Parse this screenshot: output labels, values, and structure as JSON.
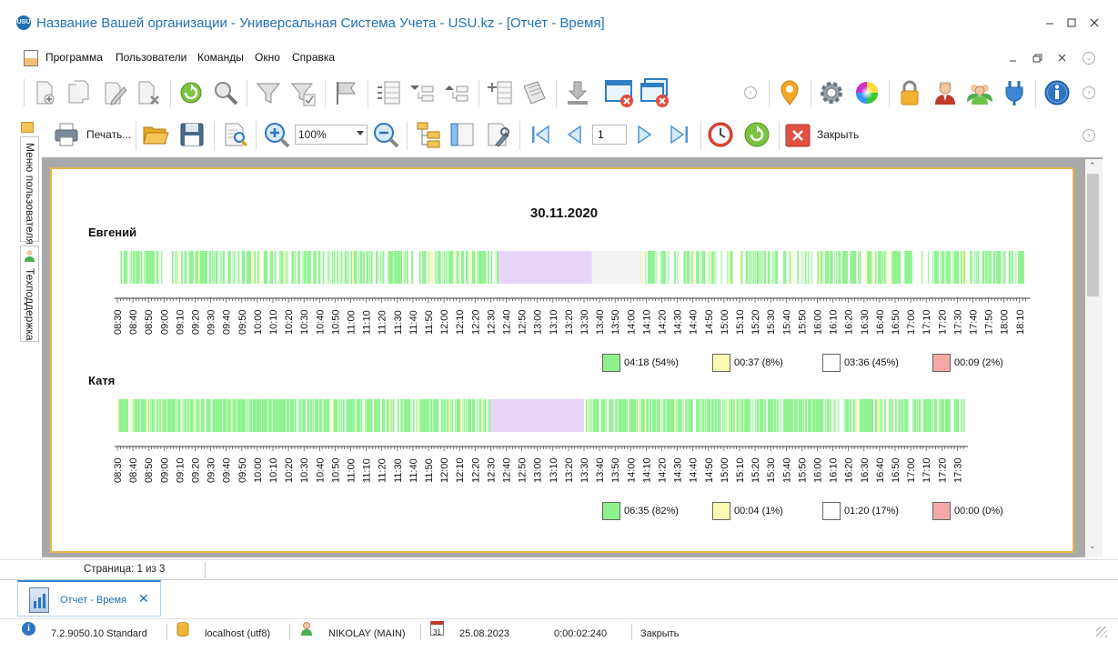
{
  "window": {
    "title": "Название Вашей организации - Универсальная Система Учета - USU.kz - [Отчет - Время]",
    "logo_text": "USU",
    "controls": [
      "minimize",
      "maximize",
      "close"
    ]
  },
  "menu": {
    "items": [
      "Программа",
      "Пользователи",
      "Команды",
      "Окно",
      "Справка"
    ]
  },
  "toolbar1": {
    "icons": [
      "add-record-icon",
      "copy-record-icon",
      "edit-record-icon",
      "delete-record-icon",
      "refresh-icon",
      "search-icon",
      "filter-icon",
      "filter-apply-icon",
      "flag-icon",
      "group-icon",
      "expand-tree-icon",
      "collapse-tree-icon",
      "add-row-icon",
      "documents-icon",
      "download-icon",
      "close-window-icon",
      "close-all-windows-icon",
      "location-pin-icon",
      "settings-gear-icon",
      "color-wheel-icon",
      "lock-icon",
      "user-icon",
      "users-icon",
      "plugin-icon",
      "info-icon"
    ]
  },
  "toolbar2": {
    "print_label": "Печать...",
    "zoom_value": "100%",
    "page_number": "1",
    "close_label": "Закрыть"
  },
  "side_panel": {
    "tab_user_menu": "Меню пользователя",
    "tab_support": "Техподдержка"
  },
  "report": {
    "date": "30.11.2020",
    "employees": [
      {
        "name": "Евгений",
        "tick_labels": [
          "08:30",
          "08:40",
          "08:50",
          "09:00",
          "09:10",
          "09:20",
          "09:30",
          "09:40",
          "09:50",
          "10:00",
          "10:10",
          "10:20",
          "10:30",
          "10:40",
          "10:50",
          "11:00",
          "11:10",
          "11:20",
          "11:30",
          "11:40",
          "11:50",
          "12:00",
          "12:10",
          "12:20",
          "12:30",
          "12:40",
          "12:50",
          "13:00",
          "13:10",
          "13:20",
          "13:30",
          "13:40",
          "13:50",
          "14:00",
          "14:10",
          "14:20",
          "14:30",
          "14:40",
          "14:50",
          "15:00",
          "15:10",
          "15:20",
          "15:30",
          "15:40",
          "15:50",
          "16:00",
          "16:10",
          "16:20",
          "16:30",
          "16:40",
          "16:50",
          "17:00",
          "17:10",
          "17:20",
          "17:30",
          "17:40",
          "17:50",
          "18:00",
          "18:10"
        ],
        "legend": [
          {
            "label": "04:18 (54%)",
            "color": "#8ef28e"
          },
          {
            "label": "00:37 (8%)",
            "color": "#fafab4"
          },
          {
            "label": "03:36 (45%)",
            "color": "#ffffff"
          },
          {
            "label": "00:09 (2%)",
            "color": "#f4a8a8"
          }
        ],
        "lunch_break": [
          "12:35",
          "13:35"
        ]
      },
      {
        "name": "Катя",
        "tick_labels": [
          "08:30",
          "08:40",
          "08:50",
          "09:00",
          "09:10",
          "09:20",
          "09:30",
          "09:40",
          "09:50",
          "10:00",
          "10:10",
          "10:20",
          "10:30",
          "10:40",
          "10:50",
          "11:00",
          "11:10",
          "11:20",
          "11:30",
          "11:40",
          "11:50",
          "12:00",
          "12:10",
          "12:20",
          "12:30",
          "12:40",
          "12:50",
          "13:00",
          "13:10",
          "13:20",
          "13:30",
          "13:40",
          "13:50",
          "14:00",
          "14:10",
          "14:20",
          "14:30",
          "14:40",
          "14:50",
          "15:00",
          "15:10",
          "15:20",
          "15:30",
          "15:40",
          "15:50",
          "16:00",
          "16:10",
          "16:20",
          "16:30",
          "16:40",
          "16:50",
          "17:00",
          "17:10",
          "17:20",
          "17:30"
        ],
        "legend": [
          {
            "label": "06:35 (82%)",
            "color": "#8ef28e"
          },
          {
            "label": "00:04 (1%)",
            "color": "#fafab4"
          },
          {
            "label": "01:20 (17%)",
            "color": "#ffffff"
          },
          {
            "label": "00:00 (0%)",
            "color": "#f4a8a8"
          }
        ],
        "lunch_break": [
          "12:30",
          "13:30"
        ]
      }
    ],
    "colors": {
      "active": "#8ef28e",
      "idle": "#fafab4",
      "offline": "#f2f2f2",
      "break": "#e6d4f7",
      "warning": "#f4a8a8"
    }
  },
  "page_status": "Страница: 1 из 3",
  "document_tab": {
    "label": "Отчет - Время",
    "close": "✕"
  },
  "status_bar": {
    "version": "7.2.9050.10 Standard",
    "database": "localhost (utf8)",
    "user": "NIKOLAY (MAIN)",
    "calendar_day": "31",
    "date": "25.08.2023",
    "elapsed": "0:00:02:240",
    "action": "Закрыть"
  }
}
